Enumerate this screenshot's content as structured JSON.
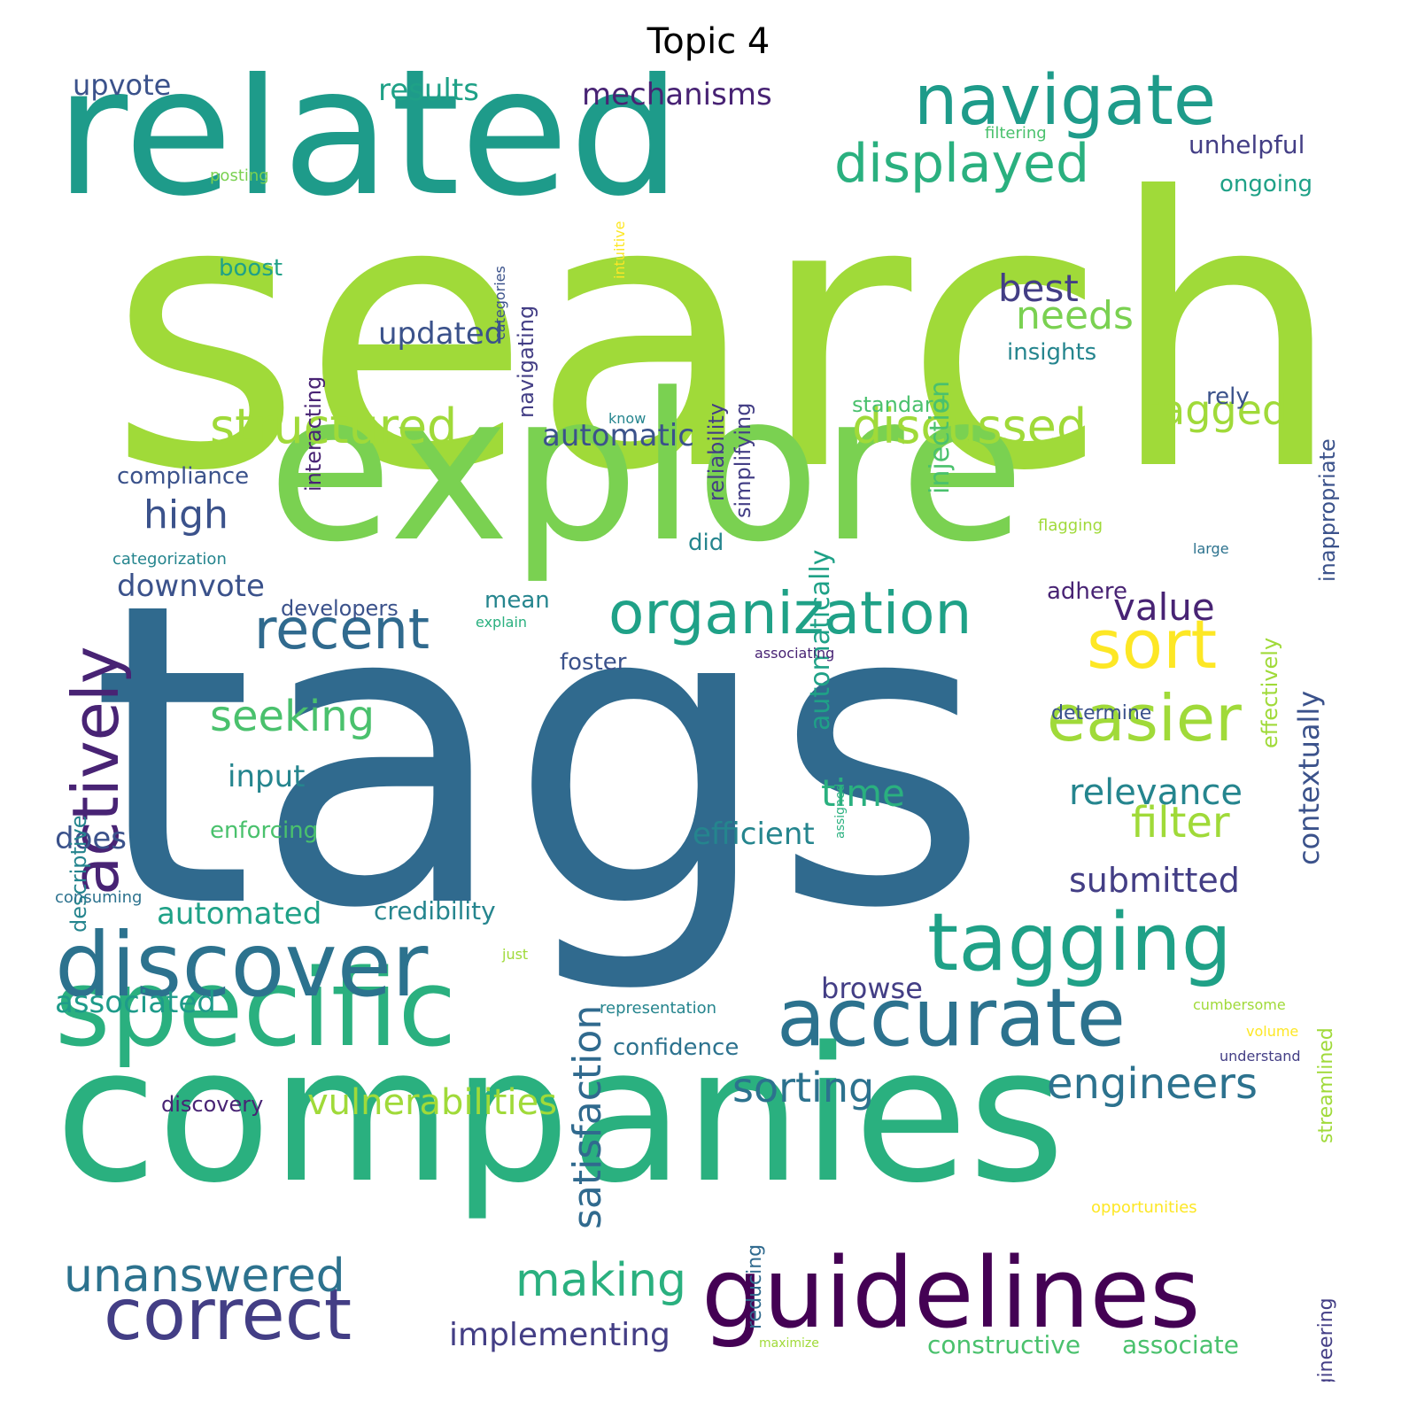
{
  "title": "Topic 4",
  "palette": {
    "yellow": "#fde725",
    "lime": "#a0da39",
    "green": "#7ad151",
    "lightgreen": "#4ac16d",
    "seagreen": "#2ab07f",
    "teal": "#1fa187",
    "darkteal": "#1e9b8a",
    "cyan": "#25858e",
    "blueteal": "#2c728e",
    "slate": "#306a8e",
    "blue": "#3b528b",
    "indigo": "#433e85",
    "purple": "#482374",
    "deep": "#440154"
  },
  "words": [
    {
      "text": "search",
      "size": 420,
      "color": "lime"
    },
    {
      "text": "tags",
      "size": 470,
      "color": "slate"
    },
    {
      "text": "explore",
      "size": 230,
      "color": "green"
    },
    {
      "text": "related",
      "size": 200,
      "color": "darkteal"
    },
    {
      "text": "companies",
      "size": 210,
      "color": "seagreen"
    },
    {
      "text": "specific",
      "size": 120,
      "color": "seagreen"
    },
    {
      "text": "discover",
      "size": 100,
      "color": "blueteal"
    },
    {
      "text": "guidelines",
      "size": 110,
      "color": "deep"
    },
    {
      "text": "accurate",
      "size": 90,
      "color": "blueteal"
    },
    {
      "text": "tagging",
      "size": 90,
      "color": "teal"
    },
    {
      "text": "correct",
      "size": 80,
      "color": "indigo"
    },
    {
      "text": "navigate",
      "size": 78,
      "color": "darkteal"
    },
    {
      "text": "actively",
      "size": 72,
      "color": "purple"
    },
    {
      "text": "sort",
      "size": 76,
      "color": "yellow"
    },
    {
      "text": "easier",
      "size": 72,
      "color": "lime"
    },
    {
      "text": "organization",
      "size": 66,
      "color": "teal"
    },
    {
      "text": "recent",
      "size": 62,
      "color": "slate"
    },
    {
      "text": "displayed",
      "size": 60,
      "color": "seagreen"
    },
    {
      "text": "discussed",
      "size": 54,
      "color": "lime"
    },
    {
      "text": "structured",
      "size": 54,
      "color": "lime"
    },
    {
      "text": "unanswered",
      "size": 52,
      "color": "blueteal"
    },
    {
      "text": "making",
      "size": 52,
      "color": "seagreen"
    },
    {
      "text": "seeking",
      "size": 48,
      "color": "lightgreen"
    },
    {
      "text": "engineers",
      "size": 48,
      "color": "blueteal"
    },
    {
      "text": "satisfaction",
      "size": 44,
      "color": "slate"
    },
    {
      "text": "filter",
      "size": 48,
      "color": "lime"
    },
    {
      "text": "tagged",
      "size": 46,
      "color": "lime"
    },
    {
      "text": "vulnerabilities",
      "size": 40,
      "color": "lime"
    },
    {
      "text": "sorting",
      "size": 46,
      "color": "blueteal"
    },
    {
      "text": "high",
      "size": 44,
      "color": "blue"
    },
    {
      "text": "needs",
      "size": 44,
      "color": "green"
    },
    {
      "text": "best",
      "size": 42,
      "color": "indigo"
    },
    {
      "text": "value",
      "size": 42,
      "color": "purple"
    },
    {
      "text": "time",
      "size": 42,
      "color": "seagreen"
    },
    {
      "text": "relevance",
      "size": 40,
      "color": "cyan"
    },
    {
      "text": "submitted",
      "size": 38,
      "color": "indigo"
    },
    {
      "text": "implementing",
      "size": 36,
      "color": "indigo"
    },
    {
      "text": "automated",
      "size": 34,
      "color": "teal"
    },
    {
      "text": "automatic",
      "size": 34,
      "color": "blue"
    },
    {
      "text": "downvote",
      "size": 34,
      "color": "blue"
    },
    {
      "text": "updated",
      "size": 34,
      "color": "blue"
    },
    {
      "text": "mechanisms",
      "size": 34,
      "color": "purple"
    },
    {
      "text": "results",
      "size": 34,
      "color": "teal"
    },
    {
      "text": "upvote",
      "size": 32,
      "color": "blue"
    },
    {
      "text": "efficient",
      "size": 34,
      "color": "cyan"
    },
    {
      "text": "input",
      "size": 34,
      "color": "cyan"
    },
    {
      "text": "does",
      "size": 34,
      "color": "blue"
    },
    {
      "text": "associated",
      "size": 34,
      "color": "darkteal"
    },
    {
      "text": "browse",
      "size": 32,
      "color": "indigo"
    },
    {
      "text": "contextually",
      "size": 32,
      "color": "blue"
    },
    {
      "text": "automatically",
      "size": 30,
      "color": "teal"
    },
    {
      "text": "injection",
      "size": 30,
      "color": "lightgreen"
    },
    {
      "text": "constructive",
      "size": 28,
      "color": "lightgreen"
    },
    {
      "text": "associate",
      "size": 28,
      "color": "lightgreen"
    },
    {
      "text": "credibility",
      "size": 28,
      "color": "cyan"
    },
    {
      "text": "enforcing",
      "size": 26,
      "color": "lightgreen"
    },
    {
      "text": "compliance",
      "size": 26,
      "color": "blue"
    },
    {
      "text": "developers",
      "size": 24,
      "color": "blue"
    },
    {
      "text": "foster",
      "size": 26,
      "color": "blue"
    },
    {
      "text": "discovery",
      "size": 24,
      "color": "purple"
    },
    {
      "text": "confidence",
      "size": 26,
      "color": "blueteal"
    },
    {
      "text": "unhelpful",
      "size": 28,
      "color": "indigo"
    },
    {
      "text": "ongoing",
      "size": 26,
      "color": "teal"
    },
    {
      "text": "insights",
      "size": 26,
      "color": "cyan"
    },
    {
      "text": "standard",
      "size": 24,
      "color": "lightgreen"
    },
    {
      "text": "rely",
      "size": 26,
      "color": "blue"
    },
    {
      "text": "boost",
      "size": 26,
      "color": "teal"
    },
    {
      "text": "did",
      "size": 26,
      "color": "cyan"
    },
    {
      "text": "mean",
      "size": 26,
      "color": "cyan"
    },
    {
      "text": "adhere",
      "size": 26,
      "color": "purple"
    },
    {
      "text": "determine",
      "size": 22,
      "color": "blue"
    },
    {
      "text": "descriptive",
      "size": 24,
      "color": "cyan"
    },
    {
      "text": "interacting",
      "size": 24,
      "color": "purple"
    },
    {
      "text": "navigating",
      "size": 24,
      "color": "indigo"
    },
    {
      "text": "reliability",
      "size": 24,
      "color": "indigo"
    },
    {
      "text": "simplifying",
      "size": 24,
      "color": "indigo"
    },
    {
      "text": "inappropriate",
      "size": 24,
      "color": "blue"
    },
    {
      "text": "effectively",
      "size": 24,
      "color": "lime"
    },
    {
      "text": "streamlined",
      "size": 22,
      "color": "lime"
    },
    {
      "text": "engineering",
      "size": 22,
      "color": "indigo"
    },
    {
      "text": "reducing",
      "size": 22,
      "color": "slate"
    },
    {
      "text": "categories",
      "size": 16,
      "color": "blue"
    },
    {
      "text": "intuitive",
      "size": 16,
      "color": "yellow"
    },
    {
      "text": "posting",
      "size": 18,
      "color": "green"
    },
    {
      "text": "filtering",
      "size": 18,
      "color": "lightgreen"
    },
    {
      "text": "know",
      "size": 16,
      "color": "cyan"
    },
    {
      "text": "flagging",
      "size": 18,
      "color": "lime"
    },
    {
      "text": "large",
      "size": 16,
      "color": "blueteal"
    },
    {
      "text": "categorization",
      "size": 18,
      "color": "cyan"
    },
    {
      "text": "explain",
      "size": 16,
      "color": "seagreen"
    },
    {
      "text": "associating",
      "size": 16,
      "color": "purple"
    },
    {
      "text": "assigned",
      "size": 14,
      "color": "seagreen"
    },
    {
      "text": "consuming",
      "size": 18,
      "color": "blueteal"
    },
    {
      "text": "just",
      "size": 16,
      "color": "lime"
    },
    {
      "text": "representation",
      "size": 18,
      "color": "cyan"
    },
    {
      "text": "cumbersome",
      "size": 16,
      "color": "lime"
    },
    {
      "text": "volume",
      "size": 16,
      "color": "yellow"
    },
    {
      "text": "understand",
      "size": 16,
      "color": "indigo"
    },
    {
      "text": "opportunities",
      "size": 18,
      "color": "yellow"
    },
    {
      "text": "maximize",
      "size": 14,
      "color": "lime"
    }
  ]
}
